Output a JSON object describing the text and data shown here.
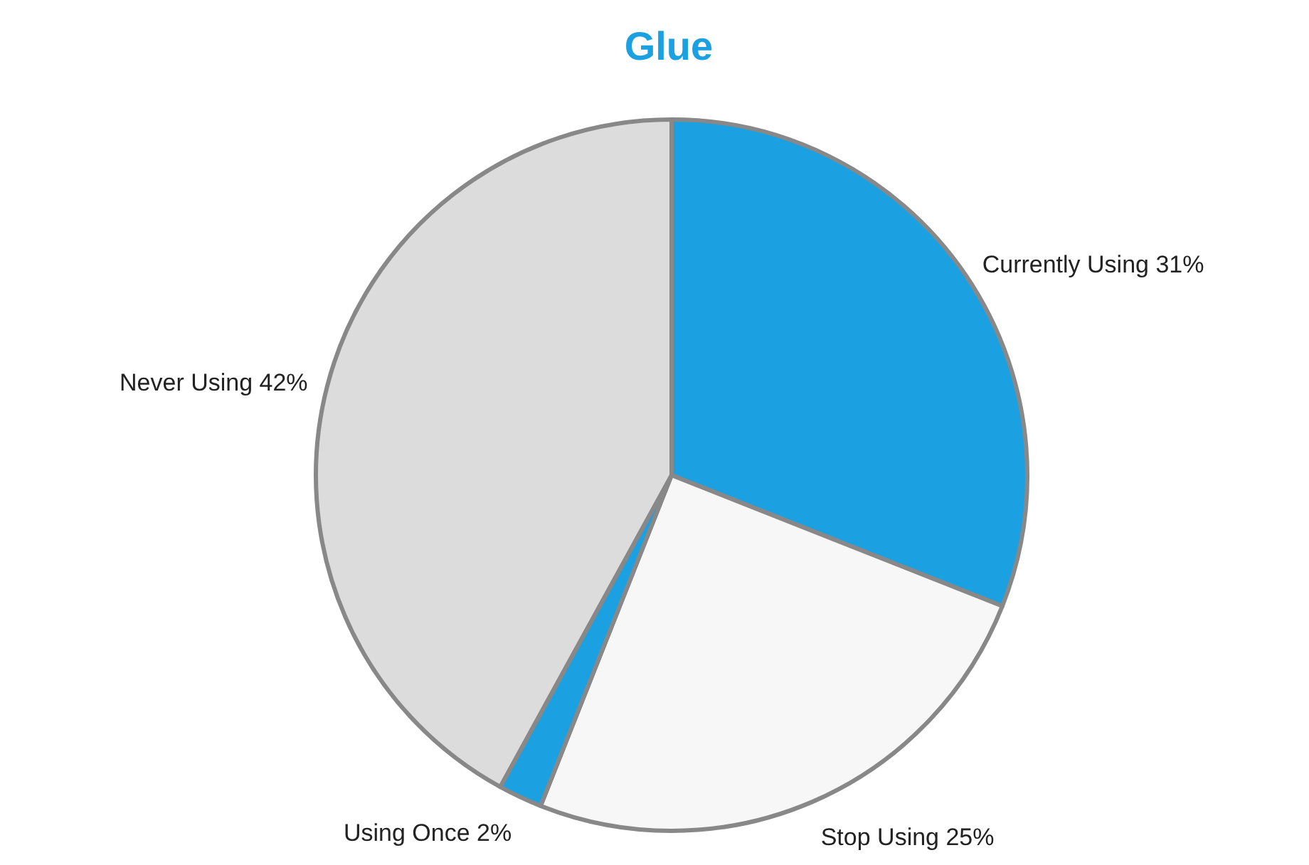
{
  "chart_data": {
    "type": "pie",
    "title": "Glue",
    "categories": [
      "Currently Using",
      "Stop Using",
      "Using Once",
      "Never Using"
    ],
    "values": [
      31,
      25,
      2,
      42
    ],
    "value_labels": [
      "31%",
      "25%",
      "2%",
      "42%"
    ],
    "colors": [
      "#1ba1e2",
      "#f7f7f7",
      "#1ba1e2",
      "#dcdcdc"
    ]
  }
}
